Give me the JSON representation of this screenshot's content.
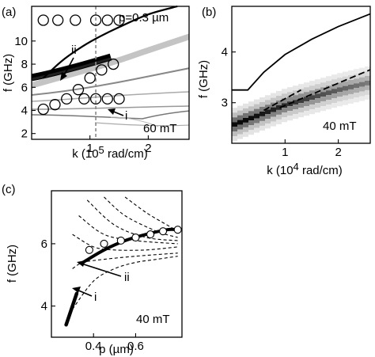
{
  "panels": {
    "a": {
      "tag": "(a)",
      "annotation": "p=0.3 µm",
      "field": "60 mT",
      "label_i": "i",
      "label_ii": "ii"
    },
    "b": {
      "tag": "(b)",
      "field": "40 mT"
    },
    "c": {
      "tag": "(c)",
      "field": "40 mT",
      "label_i": "i",
      "label_ii": "ii"
    }
  },
  "chart_data": [
    {
      "panel": "a",
      "type": "heatmap",
      "xlabel": "k (10^5 rad/cm)",
      "ylabel": "f (GHz)",
      "xlim": [
        0,
        2.7
      ],
      "ylim": [
        1.5,
        13
      ],
      "xticks": [
        "1",
        "2"
      ],
      "xtick_values": [
        1,
        2
      ],
      "yticks": [
        "2",
        "4",
        "6",
        "8",
        "10"
      ],
      "ytick_values": [
        2,
        4,
        6,
        8,
        10
      ],
      "dashed_vertical_x": 1.1,
      "upper_curve": {
        "x": [
          0.2,
          0.5,
          0.8,
          1.1,
          1.5,
          2.0,
          2.5
        ],
        "y": [
          6.8,
          8.2,
          9.3,
          10.2,
          11.2,
          12.3,
          13.0
        ]
      },
      "circles_mode_ii": {
        "x": [
          0.2,
          0.45,
          0.75,
          1.1,
          1.3,
          1.5
        ],
        "y": [
          11.8,
          11.8,
          11.8,
          11.8,
          11.8,
          11.8
        ]
      },
      "circles_lower": {
        "x": [
          0.2,
          0.4,
          0.6,
          0.8,
          1.0,
          1.2,
          1.4
        ],
        "y": [
          4.1,
          4.5,
          5.0,
          5.8,
          6.8,
          7.5,
          8.0
        ]
      },
      "circles_mode_i": {
        "x": [
          0.9,
          1.1,
          1.3,
          1.5
        ],
        "y": [
          5.0,
          5.0,
          5.0,
          5.0
        ]
      }
    },
    {
      "panel": "b",
      "type": "heatmap",
      "xlabel": "k (10^4 rad/cm)",
      "ylabel": "f (GHz)",
      "xlim": [
        0,
        2.6
      ],
      "ylim": [
        2.2,
        4.9
      ],
      "xticks": [
        "1",
        "2"
      ],
      "xtick_values": [
        1,
        2
      ],
      "yticks": [
        "3",
        "4"
      ],
      "ytick_values": [
        3,
        4
      ],
      "solid_curve": {
        "x": [
          0,
          0.3,
          0.6,
          1.0,
          1.5,
          2.0,
          2.6
        ],
        "y": [
          3.25,
          3.25,
          3.6,
          3.95,
          4.25,
          4.5,
          4.75
        ]
      },
      "dashed_line_1": {
        "x": [
          0.6,
          1.3
        ],
        "y": [
          2.85,
          3.25
        ]
      },
      "dashed_line_2": {
        "x": [
          0.9,
          2.6
        ],
        "y": [
          2.9,
          3.65
        ]
      },
      "heat_band": {
        "x": [
          0,
          0.5,
          1.0,
          1.5,
          2.0,
          2.6
        ],
        "y": [
          2.55,
          2.75,
          2.95,
          3.1,
          3.25,
          3.4
        ]
      }
    },
    {
      "panel": "c",
      "type": "line",
      "xlabel": "p (µm)",
      "ylabel": "f (GHz)",
      "xlim": [
        0.2,
        0.82
      ],
      "ylim": [
        3,
        7.7
      ],
      "xticks": [
        "0.4",
        "0.6"
      ],
      "xtick_values": [
        0.4,
        0.6
      ],
      "yticks": [
        "4",
        "6"
      ],
      "ytick_values": [
        4,
        6
      ],
      "thick_mode_i": {
        "x": [
          0.27,
          0.3,
          0.32
        ],
        "y": [
          3.4,
          4.0,
          4.4
        ]
      },
      "thick_mode_ii": {
        "x": [
          0.35,
          0.45,
          0.55,
          0.65,
          0.75,
          0.8
        ],
        "y": [
          5.4,
          5.8,
          6.1,
          6.3,
          6.45,
          6.45
        ]
      },
      "circles": {
        "x": [
          0.38,
          0.45,
          0.53,
          0.6,
          0.67,
          0.73,
          0.8
        ],
        "y": [
          5.8,
          6.0,
          6.1,
          6.2,
          6.3,
          6.4,
          6.45
        ]
      },
      "dashed_series": [
        {
          "x": [
            0.3,
            0.4,
            0.5,
            0.6,
            0.7,
            0.8
          ],
          "y": [
            3.9,
            4.8,
            5.2,
            5.4,
            5.5,
            5.6
          ]
        },
        {
          "x": [
            0.3,
            0.35,
            0.45,
            0.6,
            0.8
          ],
          "y": [
            5.2,
            5.4,
            5.5,
            5.6,
            5.7
          ]
        },
        {
          "x": [
            0.3,
            0.4,
            0.5,
            0.65,
            0.8
          ],
          "y": [
            6.3,
            5.9,
            5.8,
            5.8,
            5.9
          ]
        },
        {
          "x": [
            0.33,
            0.45,
            0.6,
            0.8
          ],
          "y": [
            6.9,
            6.3,
            6.1,
            6.0
          ]
        },
        {
          "x": [
            0.37,
            0.5,
            0.65,
            0.8
          ],
          "y": [
            7.4,
            6.6,
            6.2,
            6.1
          ]
        },
        {
          "x": [
            0.45,
            0.55,
            0.7,
            0.8
          ],
          "y": [
            7.5,
            6.9,
            6.4,
            6.2
          ]
        },
        {
          "x": [
            0.55,
            0.65,
            0.75,
            0.8
          ],
          "y": [
            7.5,
            7.0,
            6.6,
            6.4
          ]
        }
      ]
    }
  ]
}
